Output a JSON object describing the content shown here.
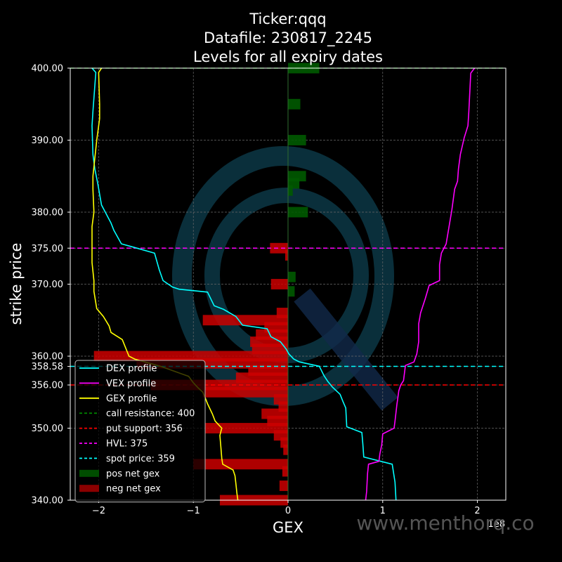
{
  "chart_data": {
    "type": "bar",
    "title_lines": [
      "Ticker:qqq",
      "Datafile: 230817_2245",
      "Levels for all expiry dates"
    ],
    "xlabel": "GEX",
    "ylabel": "strike price",
    "x_offset_label": "1e8",
    "xlim": [
      -2.3,
      2.3
    ],
    "ylim": [
      340,
      400
    ],
    "x_ticks": [
      -2,
      -1,
      0,
      1,
      2
    ],
    "x_tick_labels": [
      "−2",
      "−1",
      "0",
      "1",
      "2"
    ],
    "y_ticks": [
      340,
      350,
      356,
      358.58,
      360,
      370,
      375,
      380,
      390,
      400
    ],
    "y_tick_labels": [
      "340.00",
      "350.00",
      "356.00",
      "358.58",
      "360.00",
      "370.00",
      "375.00",
      "380.00",
      "390.00",
      "400.00"
    ],
    "grid": true,
    "legend_position": "lower-left",
    "bars_net_gex": [
      {
        "strike": 400,
        "value": 0.33
      },
      {
        "strike": 395,
        "value": 0.13
      },
      {
        "strike": 390,
        "value": 0.19
      },
      {
        "strike": 385,
        "value": 0.19
      },
      {
        "strike": 384,
        "value": 0.12
      },
      {
        "strike": 383,
        "value": 0.05
      },
      {
        "strike": 380,
        "value": 0.21
      },
      {
        "strike": 375,
        "value": -0.19
      },
      {
        "strike": 374,
        "value": -0.03
      },
      {
        "strike": 371,
        "value": 0.08
      },
      {
        "strike": 370,
        "value": -0.18
      },
      {
        "strike": 369,
        "value": 0.07
      },
      {
        "strike": 366,
        "value": -0.12
      },
      {
        "strike": 365,
        "value": -0.9
      },
      {
        "strike": 364,
        "value": -0.25
      },
      {
        "strike": 363,
        "value": -0.34
      },
      {
        "strike": 362,
        "value": -0.4
      },
      {
        "strike": 361,
        "value": -0.38
      },
      {
        "strike": 360,
        "value": -2.05
      },
      {
        "strike": 359,
        "value": -1.6
      },
      {
        "strike": 358,
        "value": -0.42
      },
      {
        "strike": 357,
        "value": -0.55
      },
      {
        "strike": 356,
        "value": -1.45
      },
      {
        "strike": 355,
        "value": -0.9
      },
      {
        "strike": 354,
        "value": -0.15
      },
      {
        "strike": 353,
        "value": -0.1
      },
      {
        "strike": 352,
        "value": -0.28
      },
      {
        "strike": 351,
        "value": -0.22
      },
      {
        "strike": 350,
        "value": -0.88
      },
      {
        "strike": 349,
        "value": -0.15
      },
      {
        "strike": 348,
        "value": -0.08
      },
      {
        "strike": 347,
        "value": -0.05
      },
      {
        "strike": 345,
        "value": -1.0
      },
      {
        "strike": 344,
        "value": -0.06
      },
      {
        "strike": 342,
        "value": -0.09
      },
      {
        "strike": 340,
        "value": -0.72
      }
    ],
    "series": [
      {
        "name": "DEX profile",
        "color": "#00ffff",
        "points": [
          [
            -2.07,
            400
          ],
          [
            -2.03,
            399.4
          ],
          [
            -2.06,
            394
          ],
          [
            -2.07,
            392
          ],
          [
            -2.06,
            388
          ],
          [
            -2.04,
            386
          ],
          [
            -2.01,
            384
          ],
          [
            -1.97,
            381
          ],
          [
            -1.93,
            380
          ],
          [
            -1.87,
            378.5
          ],
          [
            -1.84,
            377.5
          ],
          [
            -1.76,
            375.6
          ],
          [
            -1.65,
            375.2
          ],
          [
            -1.41,
            374.3
          ],
          [
            -1.36,
            372
          ],
          [
            -1.32,
            370.5
          ],
          [
            -1.22,
            369.6
          ],
          [
            -1.15,
            369.3
          ],
          [
            -0.85,
            368.9
          ],
          [
            -0.78,
            367
          ],
          [
            -0.68,
            366.5
          ],
          [
            -0.55,
            365.5
          ],
          [
            -0.48,
            364.3
          ],
          [
            -0.22,
            363.8
          ],
          [
            -0.18,
            362.7
          ],
          [
            -0.08,
            362
          ],
          [
            -0.02,
            361
          ],
          [
            0.01,
            360.3
          ],
          [
            0.06,
            359.6
          ],
          [
            0.12,
            359.2
          ],
          [
            0.33,
            358.6
          ],
          [
            0.38,
            357.3
          ],
          [
            0.42,
            356.5
          ],
          [
            0.47,
            355.7
          ],
          [
            0.55,
            354.7
          ],
          [
            0.58,
            353.7
          ],
          [
            0.61,
            352.8
          ],
          [
            0.62,
            350.2
          ],
          [
            0.78,
            349.4
          ],
          [
            0.79,
            347.8
          ],
          [
            0.8,
            346
          ],
          [
            1.1,
            345
          ],
          [
            1.13,
            342.5
          ],
          [
            1.14,
            340
          ]
        ]
      },
      {
        "name": "VEX profile",
        "color": "#ff00ff",
        "points": [
          [
            1.97,
            400
          ],
          [
            1.93,
            399.3
          ],
          [
            1.91,
            394
          ],
          [
            1.9,
            392
          ],
          [
            1.86,
            390.3
          ],
          [
            1.82,
            388
          ],
          [
            1.8,
            386
          ],
          [
            1.79,
            384.3
          ],
          [
            1.76,
            383.2
          ],
          [
            1.73,
            380.3
          ],
          [
            1.67,
            375.6
          ],
          [
            1.62,
            374.3
          ],
          [
            1.6,
            372.7
          ],
          [
            1.6,
            370.5
          ],
          [
            1.49,
            369.8
          ],
          [
            1.45,
            368
          ],
          [
            1.4,
            366
          ],
          [
            1.38,
            364.5
          ],
          [
            1.38,
            362
          ],
          [
            1.36,
            360.3
          ],
          [
            1.33,
            359.2
          ],
          [
            1.24,
            358.7
          ],
          [
            1.22,
            356.6
          ],
          [
            1.19,
            356
          ],
          [
            1.17,
            355.2
          ],
          [
            1.16,
            354.2
          ],
          [
            1.15,
            353.3
          ],
          [
            1.13,
            351
          ],
          [
            1.12,
            350
          ],
          [
            1.0,
            349.2
          ],
          [
            0.99,
            347.7
          ],
          [
            0.97,
            346.4
          ],
          [
            0.96,
            345.4
          ],
          [
            0.85,
            345
          ],
          [
            0.84,
            343.7
          ],
          [
            0.83,
            341.2
          ],
          [
            0.82,
            340
          ]
        ]
      },
      {
        "name": "GEX profile",
        "color": "#ffff00",
        "points": [
          [
            -1.97,
            400
          ],
          [
            -2.0,
            399.4
          ],
          [
            -1.99,
            395
          ],
          [
            -1.99,
            393
          ],
          [
            -2.02,
            390
          ],
          [
            -2.06,
            385
          ],
          [
            -2.06,
            383.2
          ],
          [
            -2.05,
            380
          ],
          [
            -2.07,
            378
          ],
          [
            -2.07,
            373
          ],
          [
            -2.05,
            370.5
          ],
          [
            -2.05,
            369
          ],
          [
            -2.02,
            366.6
          ],
          [
            -1.95,
            365.5
          ],
          [
            -1.89,
            364.2
          ],
          [
            -1.87,
            363.3
          ],
          [
            -1.75,
            362.3
          ],
          [
            -1.68,
            360
          ],
          [
            -1.62,
            359.6
          ],
          [
            -1.35,
            358.6
          ],
          [
            -1.05,
            357.2
          ],
          [
            -1.0,
            356.3
          ],
          [
            -0.95,
            355.6
          ],
          [
            -0.9,
            355
          ],
          [
            -0.88,
            354.4
          ],
          [
            -0.85,
            353.4
          ],
          [
            -0.8,
            352
          ],
          [
            -0.77,
            351
          ],
          [
            -0.7,
            350
          ],
          [
            -0.72,
            349
          ],
          [
            -0.71,
            347.5
          ],
          [
            -0.7,
            345.8
          ],
          [
            -0.69,
            345
          ],
          [
            -0.58,
            344.2
          ],
          [
            -0.56,
            343.4
          ],
          [
            -0.55,
            342.2
          ],
          [
            -0.54,
            341
          ],
          [
            -0.53,
            340
          ]
        ]
      }
    ],
    "levels": [
      {
        "name": "call resistance: 400",
        "value": 400,
        "color": "#008000"
      },
      {
        "name": "put support: 356",
        "value": 356,
        "color": "#ff0000"
      },
      {
        "name": "HVL: 375",
        "value": 375,
        "color": "#ff00ff"
      },
      {
        "name": "spot price: 359",
        "value": 358.58,
        "color": "#00ffff"
      }
    ],
    "bar_legend": [
      {
        "name": "pos net gex",
        "color": "#004d00"
      },
      {
        "name": "neg net gex",
        "color": "#8b0000"
      }
    ]
  },
  "watermark": "www.menthorq.co",
  "colors": {
    "pos_bar": "#005a00",
    "neg_bar": "#cc0000",
    "grid": "#6a6a6a",
    "logo_ring": "#0e3f4f",
    "logo_slash": "#122a4a"
  }
}
